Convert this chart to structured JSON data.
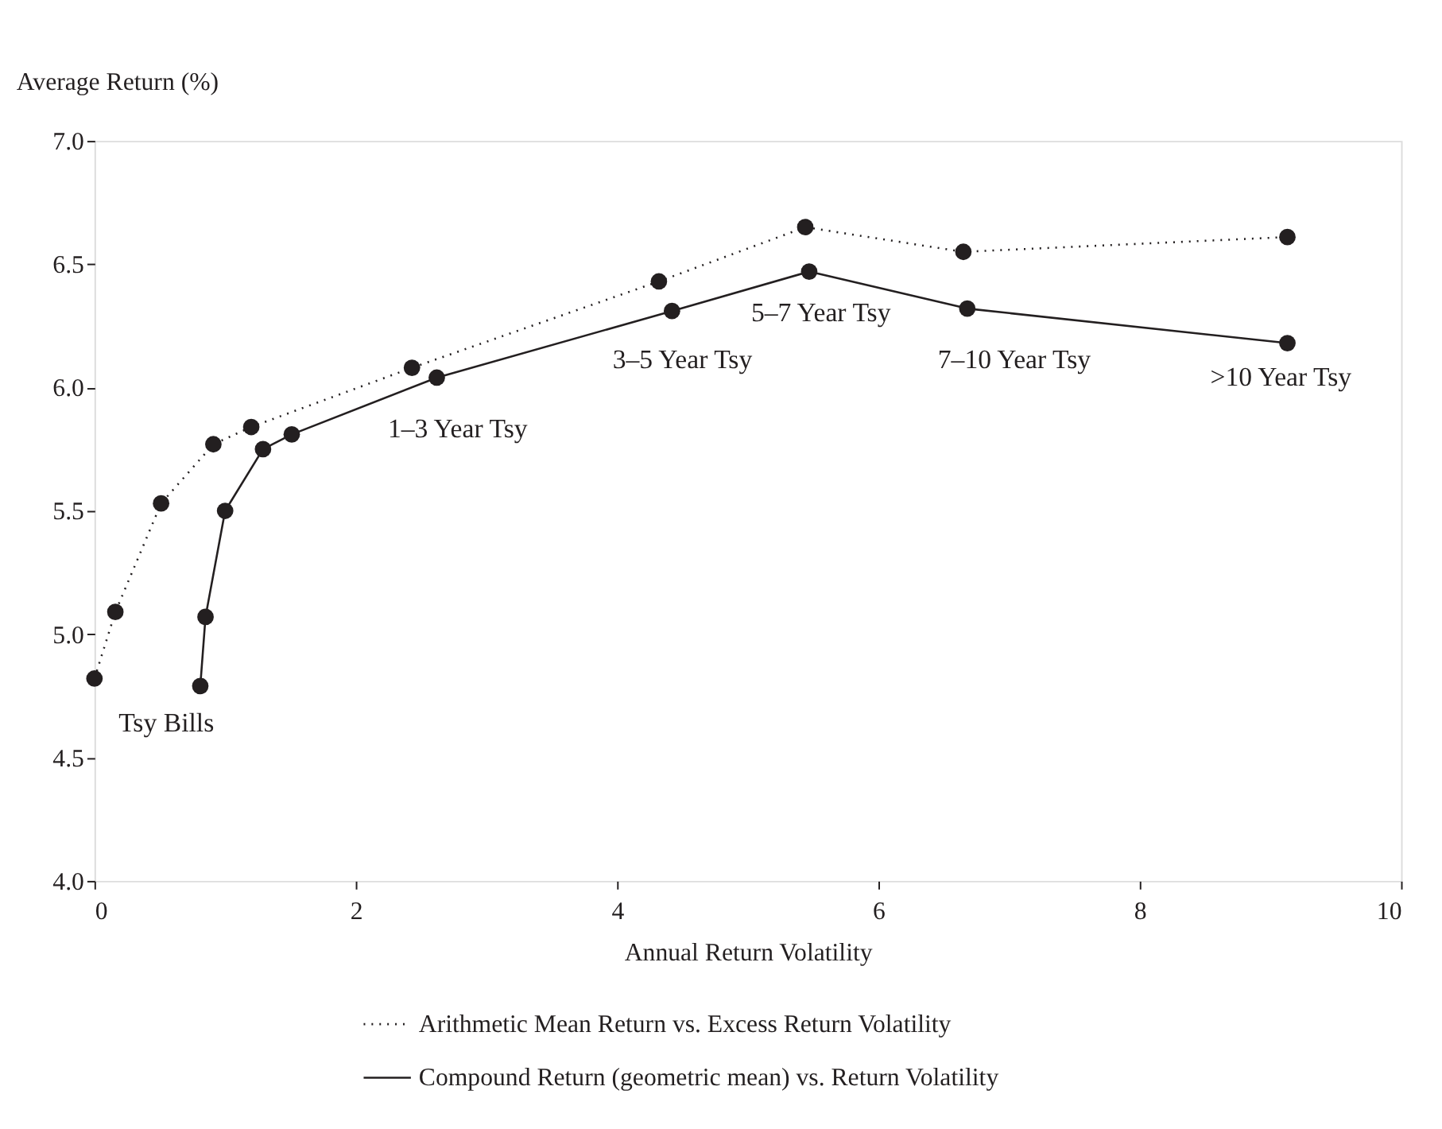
{
  "chart_data": {
    "type": "line",
    "xlabel": "Annual Return Volatility",
    "ylabel": "Average Return (%)",
    "xlim": [
      0,
      10
    ],
    "xticks": [
      0,
      2,
      4,
      6,
      8,
      10
    ],
    "ylim": [
      4.0,
      7.0
    ],
    "yticks": [
      {
        "value": 4.0,
        "label": "4.0"
      },
      {
        "value": 4.5,
        "label": "4.5"
      },
      {
        "value": 5.0,
        "label": "5.0"
      },
      {
        "value": 5.5,
        "label": "5.5"
      },
      {
        "value": 6.0,
        "label": "6.0"
      },
      {
        "value": 6.5,
        "label": "6.5"
      },
      {
        "value": 7.0,
        "label": "7.0"
      }
    ],
    "grid": false,
    "legend": "bottom",
    "marker": "circle",
    "series": [
      {
        "name": "Arithmetic Mean Return vs. Excess Return Volatility",
        "color": "#231f20",
        "line_style": "dotted",
        "x": [
          0,
          0.16,
          0.51,
          0.91,
          1.2,
          2.43,
          4.32,
          5.44,
          6.65,
          9.13
        ],
        "values": [
          4.82,
          5.09,
          5.53,
          5.77,
          5.84,
          6.08,
          6.43,
          6.65,
          6.55,
          6.61
        ]
      },
      {
        "name": "Compound Return (geometric mean) vs. Return Volatility",
        "color": "#231f20",
        "line_style": "solid",
        "x": [
          0.81,
          0.85,
          1.0,
          1.29,
          1.51,
          2.62,
          4.42,
          5.47,
          6.68,
          9.13
        ],
        "values": [
          4.79,
          5.07,
          5.5,
          5.75,
          5.81,
          6.04,
          6.31,
          6.47,
          6.32,
          6.18
        ]
      }
    ],
    "annotations": [
      "Tsy Bills",
      "1–3 Year Tsy",
      "3–5 Year Tsy",
      "5–7 Year Tsy",
      "7–10 Year Tsy",
      ">10 Year Tsy"
    ]
  }
}
